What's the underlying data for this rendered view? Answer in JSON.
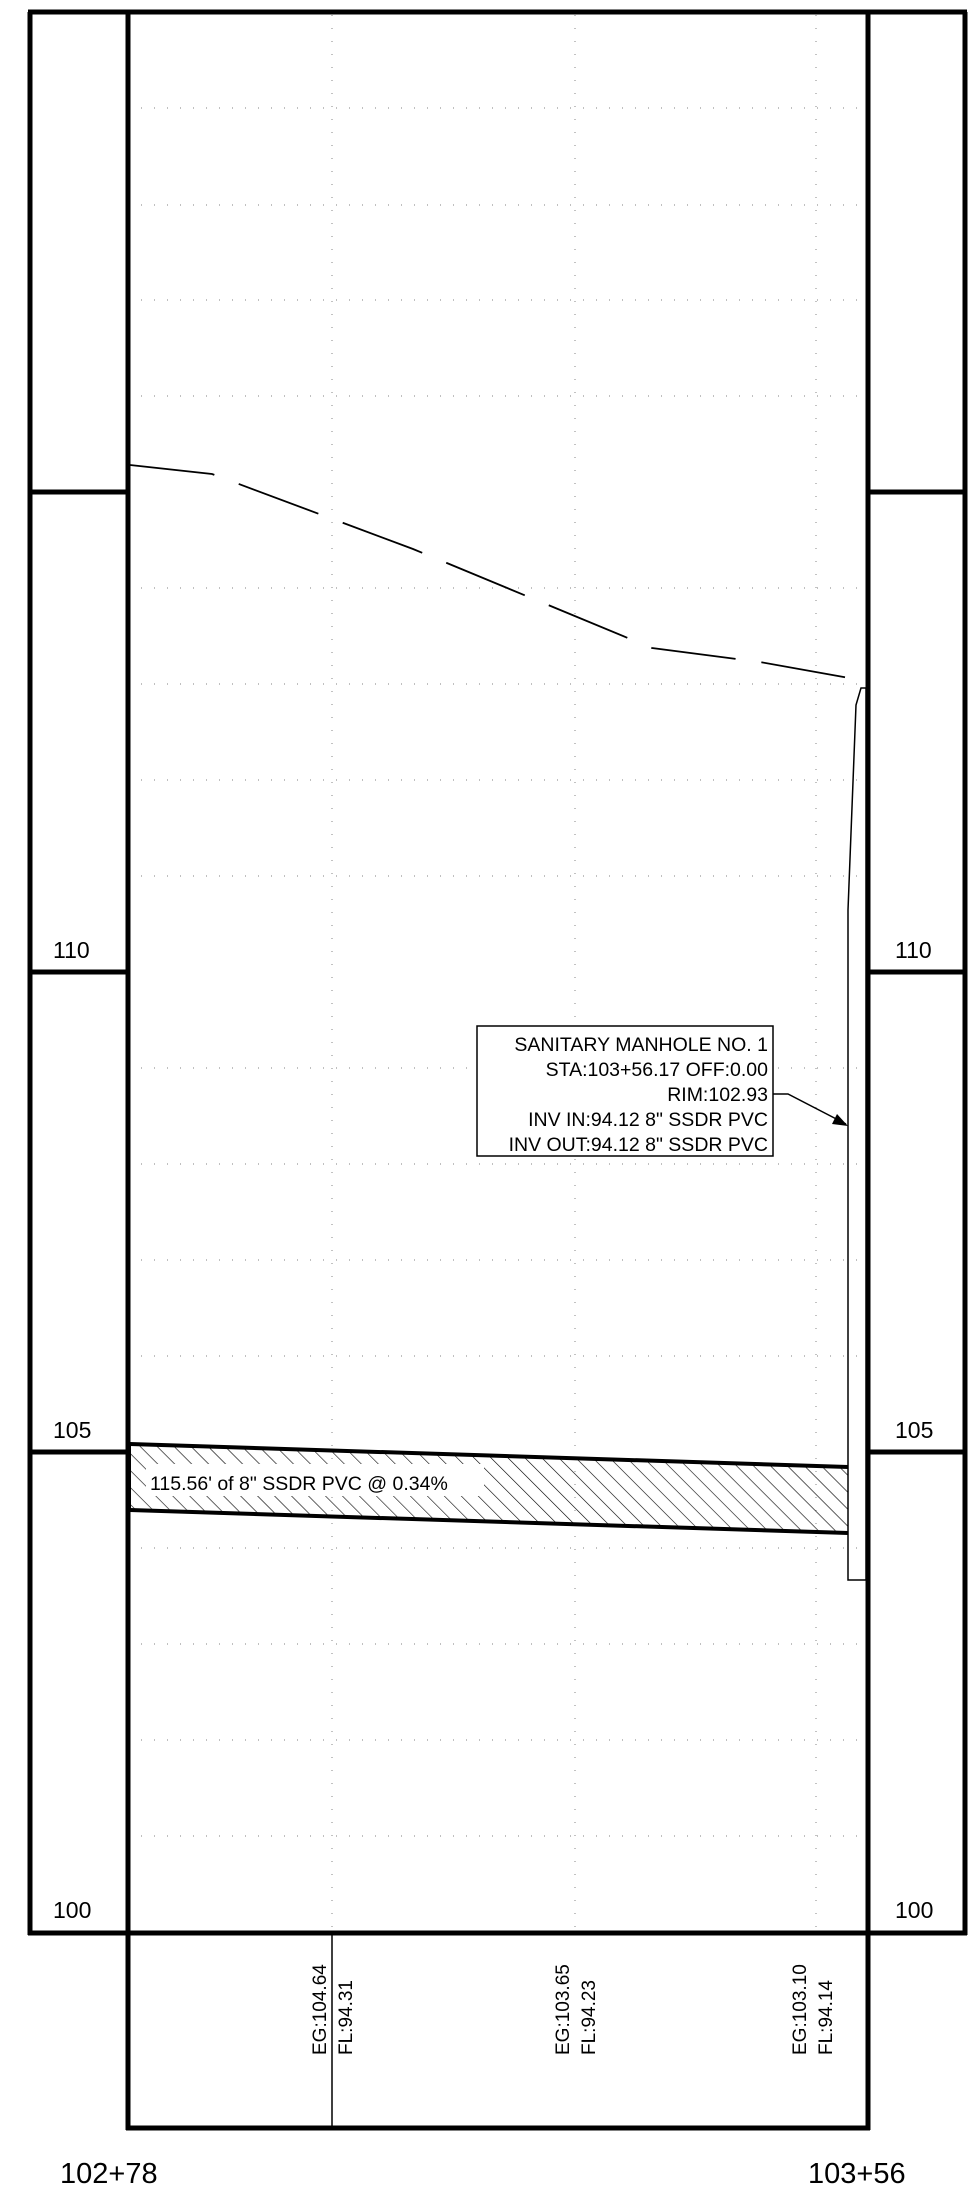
{
  "profile": {
    "elevations": [
      {
        "value": 110,
        "label": "110"
      },
      {
        "value": 105,
        "label": "105"
      },
      {
        "value": 100,
        "label": "100"
      }
    ],
    "stations": {
      "start": "102+78",
      "end": "103+56"
    },
    "station_values": [
      {
        "eg": "EG:104.64",
        "fl": "FL:94.31"
      },
      {
        "eg": "EG:103.65",
        "fl": "FL:94.23"
      },
      {
        "eg": "EG:103.10",
        "fl": "FL:94.14"
      }
    ],
    "pipe": {
      "label": "115.56' of 8\" SSDR PVC @ 0.34%"
    },
    "manhole": {
      "lines": [
        "SANITARY MANHOLE NO. 1",
        "STA:103+56.17 OFF:0.00",
        "RIM:102.93",
        "INV IN:94.12 8\" SSDR PVC",
        "INV OUT:94.12 8\" SSDR PVC"
      ]
    }
  },
  "colors": {
    "ink": "#000000",
    "grid": "#9a9a9a",
    "paper": "#ffffff"
  }
}
